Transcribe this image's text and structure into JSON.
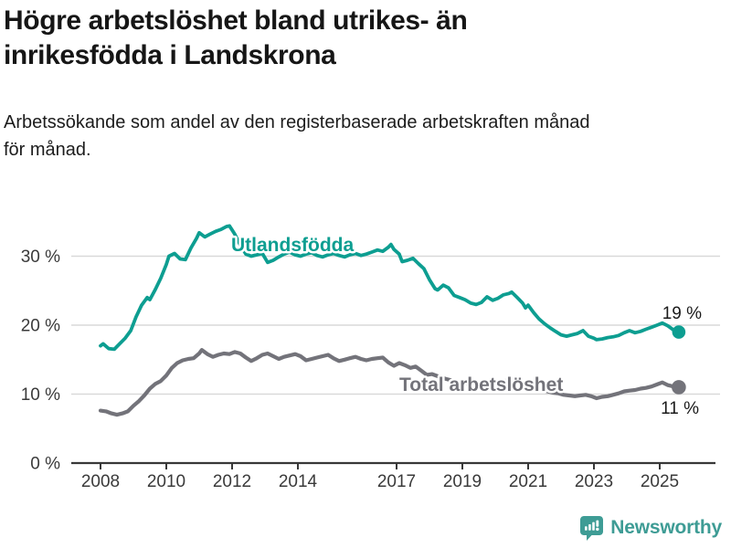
{
  "header": {
    "title_lines": [
      "Högre arbetslöshet bland utrikes- än",
      "inrikesfödda i Landskrona"
    ],
    "subtitle_lines": [
      "Arbetssökande som andel av den registerbaserade arbetskraften månad",
      "för månad."
    ]
  },
  "footer": {
    "brand": "Newsworthy",
    "brand_color": "#3e9c95",
    "logo_icon": "newsworthy-chart-bubble-icon"
  },
  "chart_data": {
    "type": "line",
    "title": "Högre arbetslöshet bland utrikes- än inrikesfödda i Landskrona",
    "subtitle": "Arbetssökande som andel av den registerbaserade arbetskraften månad för månad.",
    "xlabel": "",
    "ylabel": "",
    "ylim": [
      0,
      35.5
    ],
    "xlim": [
      2007.6,
      2025.9
    ],
    "grid": "horizontal",
    "legend_position": "inline-labels-on-lines",
    "axis_color": "#383838",
    "gridline_color": "#d9d9d9",
    "tick_label_color": "#3a3a3a",
    "yticks": [
      {
        "value": 0,
        "label": "0 %"
      },
      {
        "value": 10,
        "label": "10 %"
      },
      {
        "value": 20,
        "label": "20 %"
      },
      {
        "value": 30,
        "label": "30 %"
      }
    ],
    "xticks": [
      {
        "value": 2008,
        "label": "2008"
      },
      {
        "value": 2010,
        "label": "2010"
      },
      {
        "value": 2012,
        "label": "2012"
      },
      {
        "value": 2014,
        "label": "2014"
      },
      {
        "value": 2017,
        "label": "2017"
      },
      {
        "value": 2019,
        "label": "2019"
      },
      {
        "value": 2021,
        "label": "2021"
      },
      {
        "value": 2023,
        "label": "2023"
      },
      {
        "value": 2025,
        "label": "2025"
      }
    ],
    "series": [
      {
        "name": "Utlandsfödda",
        "color": "#0d9e91",
        "end_label": "19 %",
        "end_value": 19,
        "points": [
          [
            2008.0,
            17.0
          ],
          [
            2008.08,
            17.3
          ],
          [
            2008.25,
            16.6
          ],
          [
            2008.42,
            16.5
          ],
          [
            2008.58,
            17.3
          ],
          [
            2008.75,
            18.1
          ],
          [
            2008.92,
            19.2
          ],
          [
            2009.08,
            21.2
          ],
          [
            2009.25,
            22.9
          ],
          [
            2009.42,
            24.0
          ],
          [
            2009.5,
            23.7
          ],
          [
            2009.67,
            25.2
          ],
          [
            2009.83,
            26.8
          ],
          [
            2010.0,
            28.8
          ],
          [
            2010.08,
            30.0
          ],
          [
            2010.25,
            30.4
          ],
          [
            2010.42,
            29.6
          ],
          [
            2010.58,
            29.5
          ],
          [
            2010.75,
            31.2
          ],
          [
            2010.92,
            32.6
          ],
          [
            2011.0,
            33.4
          ],
          [
            2011.17,
            32.8
          ],
          [
            2011.33,
            33.2
          ],
          [
            2011.5,
            33.6
          ],
          [
            2011.67,
            33.9
          ],
          [
            2011.83,
            34.3
          ],
          [
            2011.92,
            34.4
          ],
          [
            2012.08,
            33.2
          ],
          [
            2012.25,
            31.6
          ],
          [
            2012.42,
            30.3
          ],
          [
            2012.58,
            30.0
          ],
          [
            2012.75,
            30.2
          ],
          [
            2012.92,
            30.4
          ],
          [
            2013.08,
            29.1
          ],
          [
            2013.25,
            29.4
          ],
          [
            2013.42,
            29.9
          ],
          [
            2013.58,
            30.3
          ],
          [
            2013.75,
            30.6
          ],
          [
            2013.92,
            30.2
          ],
          [
            2014.08,
            30.0
          ],
          [
            2014.25,
            30.3
          ],
          [
            2014.42,
            30.5
          ],
          [
            2014.58,
            30.1
          ],
          [
            2014.75,
            29.9
          ],
          [
            2014.92,
            30.2
          ],
          [
            2015.08,
            30.4
          ],
          [
            2015.25,
            30.1
          ],
          [
            2015.42,
            29.9
          ],
          [
            2015.58,
            30.2
          ],
          [
            2015.75,
            30.4
          ],
          [
            2015.92,
            30.1
          ],
          [
            2016.08,
            30.3
          ],
          [
            2016.25,
            30.6
          ],
          [
            2016.42,
            30.9
          ],
          [
            2016.58,
            30.7
          ],
          [
            2016.75,
            31.3
          ],
          [
            2016.83,
            31.7
          ],
          [
            2016.92,
            31.0
          ],
          [
            2017.08,
            30.3
          ],
          [
            2017.17,
            29.2
          ],
          [
            2017.33,
            29.4
          ],
          [
            2017.5,
            29.7
          ],
          [
            2017.67,
            28.9
          ],
          [
            2017.83,
            28.2
          ],
          [
            2018.0,
            26.6
          ],
          [
            2018.17,
            25.3
          ],
          [
            2018.25,
            25.1
          ],
          [
            2018.42,
            25.8
          ],
          [
            2018.58,
            25.4
          ],
          [
            2018.75,
            24.3
          ],
          [
            2018.92,
            24.0
          ],
          [
            2019.08,
            23.7
          ],
          [
            2019.25,
            23.2
          ],
          [
            2019.42,
            23.0
          ],
          [
            2019.58,
            23.3
          ],
          [
            2019.75,
            24.1
          ],
          [
            2019.92,
            23.6
          ],
          [
            2020.08,
            23.9
          ],
          [
            2020.25,
            24.4
          ],
          [
            2020.42,
            24.6
          ],
          [
            2020.5,
            24.8
          ],
          [
            2020.67,
            24.0
          ],
          [
            2020.83,
            23.2
          ],
          [
            2020.92,
            22.5
          ],
          [
            2021.0,
            22.9
          ],
          [
            2021.17,
            21.8
          ],
          [
            2021.33,
            20.9
          ],
          [
            2021.5,
            20.2
          ],
          [
            2021.67,
            19.6
          ],
          [
            2021.83,
            19.1
          ],
          [
            2022.0,
            18.6
          ],
          [
            2022.17,
            18.4
          ],
          [
            2022.33,
            18.6
          ],
          [
            2022.5,
            18.8
          ],
          [
            2022.67,
            19.2
          ],
          [
            2022.83,
            18.4
          ],
          [
            2023.0,
            18.1
          ],
          [
            2023.08,
            17.9
          ],
          [
            2023.25,
            18.0
          ],
          [
            2023.42,
            18.2
          ],
          [
            2023.58,
            18.3
          ],
          [
            2023.75,
            18.5
          ],
          [
            2023.92,
            18.9
          ],
          [
            2024.08,
            19.2
          ],
          [
            2024.25,
            18.9
          ],
          [
            2024.42,
            19.1
          ],
          [
            2024.58,
            19.4
          ],
          [
            2024.75,
            19.7
          ],
          [
            2024.92,
            20.0
          ],
          [
            2025.08,
            20.3
          ],
          [
            2025.25,
            19.9
          ],
          [
            2025.42,
            19.3
          ],
          [
            2025.58,
            19.0
          ]
        ]
      },
      {
        "name": "Total arbetslöshet",
        "color": "#73737a",
        "end_label": "11 %",
        "end_value": 11,
        "points": [
          [
            2008.0,
            7.6
          ],
          [
            2008.17,
            7.5
          ],
          [
            2008.33,
            7.2
          ],
          [
            2008.5,
            7.0
          ],
          [
            2008.67,
            7.2
          ],
          [
            2008.83,
            7.5
          ],
          [
            2009.0,
            8.3
          ],
          [
            2009.17,
            9.0
          ],
          [
            2009.33,
            9.8
          ],
          [
            2009.5,
            10.8
          ],
          [
            2009.67,
            11.5
          ],
          [
            2009.83,
            11.9
          ],
          [
            2010.0,
            12.7
          ],
          [
            2010.17,
            13.8
          ],
          [
            2010.33,
            14.5
          ],
          [
            2010.5,
            14.9
          ],
          [
            2010.67,
            15.1
          ],
          [
            2010.83,
            15.2
          ],
          [
            2011.0,
            15.9
          ],
          [
            2011.08,
            16.4
          ],
          [
            2011.25,
            15.8
          ],
          [
            2011.42,
            15.4
          ],
          [
            2011.58,
            15.7
          ],
          [
            2011.75,
            15.9
          ],
          [
            2011.92,
            15.8
          ],
          [
            2012.08,
            16.1
          ],
          [
            2012.25,
            15.9
          ],
          [
            2012.42,
            15.3
          ],
          [
            2012.58,
            14.8
          ],
          [
            2012.75,
            15.2
          ],
          [
            2012.92,
            15.7
          ],
          [
            2013.08,
            15.9
          ],
          [
            2013.25,
            15.5
          ],
          [
            2013.42,
            15.1
          ],
          [
            2013.58,
            15.4
          ],
          [
            2013.75,
            15.6
          ],
          [
            2013.92,
            15.8
          ],
          [
            2014.08,
            15.5
          ],
          [
            2014.25,
            14.9
          ],
          [
            2014.42,
            15.1
          ],
          [
            2014.58,
            15.3
          ],
          [
            2014.75,
            15.5
          ],
          [
            2014.92,
            15.7
          ],
          [
            2015.08,
            15.2
          ],
          [
            2015.25,
            14.8
          ],
          [
            2015.42,
            15.0
          ],
          [
            2015.58,
            15.2
          ],
          [
            2015.75,
            15.4
          ],
          [
            2015.92,
            15.1
          ],
          [
            2016.08,
            14.9
          ],
          [
            2016.25,
            15.1
          ],
          [
            2016.42,
            15.2
          ],
          [
            2016.58,
            15.3
          ],
          [
            2016.75,
            14.6
          ],
          [
            2016.92,
            14.1
          ],
          [
            2017.08,
            14.5
          ],
          [
            2017.25,
            14.2
          ],
          [
            2017.42,
            13.8
          ],
          [
            2017.58,
            14.0
          ],
          [
            2017.75,
            13.4
          ],
          [
            2017.92,
            12.8
          ],
          [
            2018.08,
            12.9
          ],
          [
            2018.25,
            12.6
          ],
          [
            2018.5,
            12.2
          ],
          [
            2018.75,
            11.9
          ],
          [
            2019.0,
            11.6
          ],
          [
            2019.25,
            11.4
          ],
          [
            2019.5,
            11.2
          ],
          [
            2019.75,
            11.4
          ],
          [
            2020.0,
            11.6
          ],
          [
            2020.25,
            11.9
          ],
          [
            2020.5,
            12.0
          ],
          [
            2020.75,
            11.6
          ],
          [
            2021.0,
            11.2
          ],
          [
            2021.25,
            10.8
          ],
          [
            2021.5,
            10.5
          ],
          [
            2021.75,
            10.2
          ],
          [
            2021.92,
            10.1
          ],
          [
            2022.08,
            9.9
          ],
          [
            2022.25,
            9.8
          ],
          [
            2022.42,
            9.7
          ],
          [
            2022.58,
            9.8
          ],
          [
            2022.75,
            9.9
          ],
          [
            2022.92,
            9.7
          ],
          [
            2023.08,
            9.4
          ],
          [
            2023.25,
            9.6
          ],
          [
            2023.42,
            9.7
          ],
          [
            2023.58,
            9.9
          ],
          [
            2023.75,
            10.1
          ],
          [
            2023.92,
            10.4
          ],
          [
            2024.08,
            10.5
          ],
          [
            2024.25,
            10.6
          ],
          [
            2024.42,
            10.8
          ],
          [
            2024.58,
            10.9
          ],
          [
            2024.75,
            11.1
          ],
          [
            2024.92,
            11.4
          ],
          [
            2025.08,
            11.7
          ],
          [
            2025.25,
            11.3
          ],
          [
            2025.42,
            11.1
          ],
          [
            2025.58,
            11.0
          ]
        ]
      }
    ]
  }
}
